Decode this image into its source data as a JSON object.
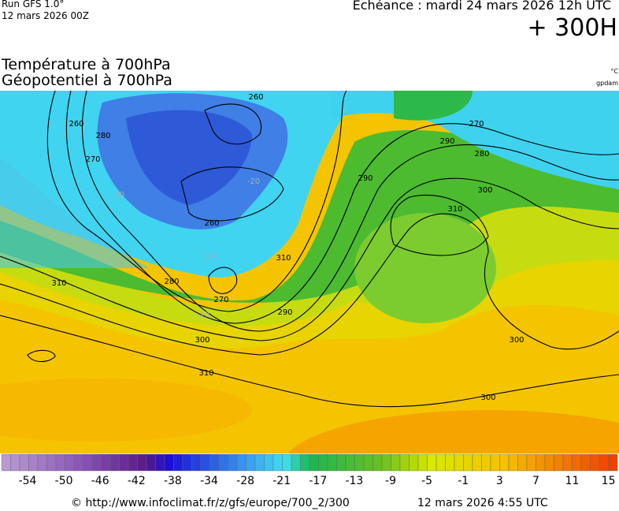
{
  "header": {
    "run": "Run GFS 1.0°",
    "run_date": "12 mars 2026 00Z",
    "valid": "Echéance : mardi 24 mars 2026 12h UTC",
    "lead": "+ 300H"
  },
  "titles": {
    "line1": "Température à 700hPa",
    "line2": "Géopotentiel à 700hPa",
    "unit_temp": "°C",
    "unit_geo": "gpdam"
  },
  "map": {
    "contour_labels": [
      "260",
      "280",
      "270",
      "260",
      "270",
      "280",
      "290",
      "300",
      "310",
      "260",
      "270",
      "280",
      "290",
      "290",
      "300",
      "310",
      "300",
      "310",
      "300",
      "310",
      "-30",
      "-20",
      "-20",
      "-10"
    ]
  },
  "colorbar": {
    "labels": [
      "-54",
      "-50",
      "-46",
      "-42",
      "-38",
      "-34",
      "-28",
      "-21",
      "-17",
      "-13",
      "-9",
      "-5",
      "-1",
      "3",
      "7",
      "11",
      "15"
    ]
  },
  "footer": {
    "source": "© http://www.infoclimat.fr/z/gfs/europe/700_2/300",
    "generated": "12 mars 2026  4:55 UTC"
  }
}
